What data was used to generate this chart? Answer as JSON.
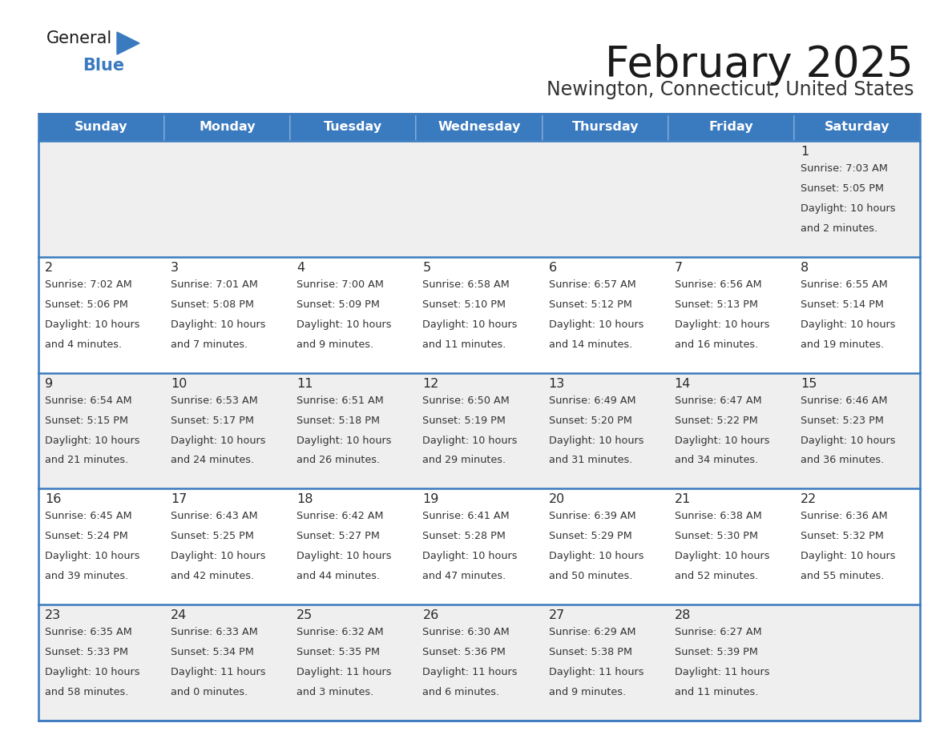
{
  "title": "February 2025",
  "subtitle": "Newington, Connecticut, United States",
  "days_of_week": [
    "Sunday",
    "Monday",
    "Tuesday",
    "Wednesday",
    "Thursday",
    "Friday",
    "Saturday"
  ],
  "header_bg": "#3a7abf",
  "header_text": "#ffffff",
  "day_num_color": "#2a2a2a",
  "cell_text_color": "#333333",
  "cell_bg_odd": "#efefef",
  "cell_bg_even": "#ffffff",
  "border_color": "#3a7abf",
  "title_color": "#1a1a1a",
  "subtitle_color": "#333333",
  "logo_general_color": "#1a1a1a",
  "logo_blue_color": "#3a7abf",
  "weeks": [
    [
      {
        "day": null,
        "sunrise": null,
        "sunset": null,
        "daylight": null
      },
      {
        "day": null,
        "sunrise": null,
        "sunset": null,
        "daylight": null
      },
      {
        "day": null,
        "sunrise": null,
        "sunset": null,
        "daylight": null
      },
      {
        "day": null,
        "sunrise": null,
        "sunset": null,
        "daylight": null
      },
      {
        "day": null,
        "sunrise": null,
        "sunset": null,
        "daylight": null
      },
      {
        "day": null,
        "sunrise": null,
        "sunset": null,
        "daylight": null
      },
      {
        "day": 1,
        "sunrise": "7:03 AM",
        "sunset": "5:05 PM",
        "daylight": "10 hours\nand 2 minutes."
      }
    ],
    [
      {
        "day": 2,
        "sunrise": "7:02 AM",
        "sunset": "5:06 PM",
        "daylight": "10 hours\nand 4 minutes."
      },
      {
        "day": 3,
        "sunrise": "7:01 AM",
        "sunset": "5:08 PM",
        "daylight": "10 hours\nand 7 minutes."
      },
      {
        "day": 4,
        "sunrise": "7:00 AM",
        "sunset": "5:09 PM",
        "daylight": "10 hours\nand 9 minutes."
      },
      {
        "day": 5,
        "sunrise": "6:58 AM",
        "sunset": "5:10 PM",
        "daylight": "10 hours\nand 11 minutes."
      },
      {
        "day": 6,
        "sunrise": "6:57 AM",
        "sunset": "5:12 PM",
        "daylight": "10 hours\nand 14 minutes."
      },
      {
        "day": 7,
        "sunrise": "6:56 AM",
        "sunset": "5:13 PM",
        "daylight": "10 hours\nand 16 minutes."
      },
      {
        "day": 8,
        "sunrise": "6:55 AM",
        "sunset": "5:14 PM",
        "daylight": "10 hours\nand 19 minutes."
      }
    ],
    [
      {
        "day": 9,
        "sunrise": "6:54 AM",
        "sunset": "5:15 PM",
        "daylight": "10 hours\nand 21 minutes."
      },
      {
        "day": 10,
        "sunrise": "6:53 AM",
        "sunset": "5:17 PM",
        "daylight": "10 hours\nand 24 minutes."
      },
      {
        "day": 11,
        "sunrise": "6:51 AM",
        "sunset": "5:18 PM",
        "daylight": "10 hours\nand 26 minutes."
      },
      {
        "day": 12,
        "sunrise": "6:50 AM",
        "sunset": "5:19 PM",
        "daylight": "10 hours\nand 29 minutes."
      },
      {
        "day": 13,
        "sunrise": "6:49 AM",
        "sunset": "5:20 PM",
        "daylight": "10 hours\nand 31 minutes."
      },
      {
        "day": 14,
        "sunrise": "6:47 AM",
        "sunset": "5:22 PM",
        "daylight": "10 hours\nand 34 minutes."
      },
      {
        "day": 15,
        "sunrise": "6:46 AM",
        "sunset": "5:23 PM",
        "daylight": "10 hours\nand 36 minutes."
      }
    ],
    [
      {
        "day": 16,
        "sunrise": "6:45 AM",
        "sunset": "5:24 PM",
        "daylight": "10 hours\nand 39 minutes."
      },
      {
        "day": 17,
        "sunrise": "6:43 AM",
        "sunset": "5:25 PM",
        "daylight": "10 hours\nand 42 minutes."
      },
      {
        "day": 18,
        "sunrise": "6:42 AM",
        "sunset": "5:27 PM",
        "daylight": "10 hours\nand 44 minutes."
      },
      {
        "day": 19,
        "sunrise": "6:41 AM",
        "sunset": "5:28 PM",
        "daylight": "10 hours\nand 47 minutes."
      },
      {
        "day": 20,
        "sunrise": "6:39 AM",
        "sunset": "5:29 PM",
        "daylight": "10 hours\nand 50 minutes."
      },
      {
        "day": 21,
        "sunrise": "6:38 AM",
        "sunset": "5:30 PM",
        "daylight": "10 hours\nand 52 minutes."
      },
      {
        "day": 22,
        "sunrise": "6:36 AM",
        "sunset": "5:32 PM",
        "daylight": "10 hours\nand 55 minutes."
      }
    ],
    [
      {
        "day": 23,
        "sunrise": "6:35 AM",
        "sunset": "5:33 PM",
        "daylight": "10 hours\nand 58 minutes."
      },
      {
        "day": 24,
        "sunrise": "6:33 AM",
        "sunset": "5:34 PM",
        "daylight": "11 hours\nand 0 minutes."
      },
      {
        "day": 25,
        "sunrise": "6:32 AM",
        "sunset": "5:35 PM",
        "daylight": "11 hours\nand 3 minutes."
      },
      {
        "day": 26,
        "sunrise": "6:30 AM",
        "sunset": "5:36 PM",
        "daylight": "11 hours\nand 6 minutes."
      },
      {
        "day": 27,
        "sunrise": "6:29 AM",
        "sunset": "5:38 PM",
        "daylight": "11 hours\nand 9 minutes."
      },
      {
        "day": 28,
        "sunrise": "6:27 AM",
        "sunset": "5:39 PM",
        "daylight": "11 hours\nand 11 minutes."
      },
      {
        "day": null,
        "sunrise": null,
        "sunset": null,
        "daylight": null
      }
    ]
  ]
}
